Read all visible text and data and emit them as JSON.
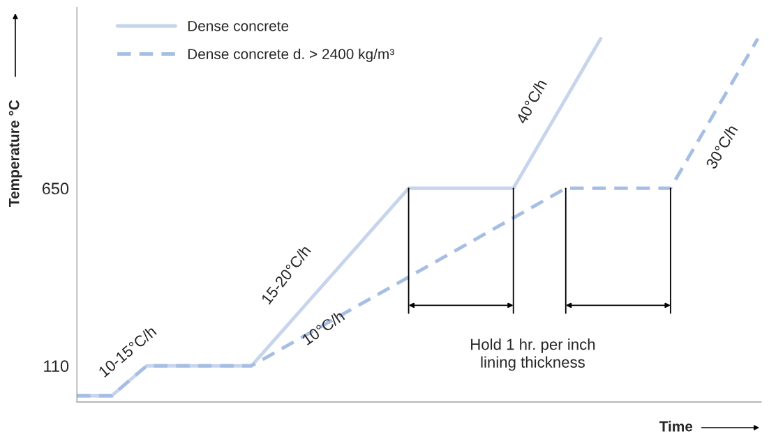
{
  "chart_data": {
    "type": "line",
    "xlabel": "Time",
    "ylabel": "Temperature °C",
    "categories": [
      null,
      null,
      null,
      null,
      null,
      null,
      null,
      null,
      null,
      null,
      null,
      null,
      null,
      null,
      null,
      null,
      null,
      null,
      null,
      null,
      null,
      null,
      null,
      null,
      null,
      null,
      null,
      null,
      null,
      null,
      null,
      null,
      null,
      null,
      null,
      null,
      null,
      null,
      null,
      null
    ],
    "series": [
      {
        "name": "Dense concrete",
        "color": "#c6d4ec",
        "line_style": "solid",
        "values": [
          19,
          19,
          19,
          65,
          110,
          110,
          110,
          110,
          110,
          110,
          110,
          170,
          230,
          290,
          350,
          410,
          470,
          530,
          590,
          650,
          650,
          650,
          650,
          650,
          650,
          650,
          741,
          832,
          923,
          1014,
          1105,
          null,
          null,
          null,
          null,
          null,
          null,
          null,
          null,
          null
        ]
      },
      {
        "name": "Dense concrete d. > 2400 kg/m³",
        "color": "#a6bee4",
        "line_style": "dashed",
        "values": [
          19,
          19,
          19,
          65,
          110,
          110,
          110,
          110,
          110,
          110,
          110,
          140,
          170,
          200,
          230,
          260,
          290,
          320,
          350,
          380,
          410,
          440,
          470,
          500,
          530,
          560,
          590,
          620,
          650,
          650,
          650,
          650,
          650,
          650,
          650,
          741,
          832,
          923,
          1014,
          1105
        ]
      }
    ],
    "ylim": [
      0,
      1200
    ],
    "yticks": [
      110,
      650
    ],
    "annotations": [
      "10-15°C/h",
      "15-20°C/h",
      "10°C/h",
      "40°C/h",
      "30°C/h",
      "Hold 1 hr. per inch\nlining thickness"
    ],
    "legend": "top left",
    "grid": false,
    "marker": "none"
  }
}
